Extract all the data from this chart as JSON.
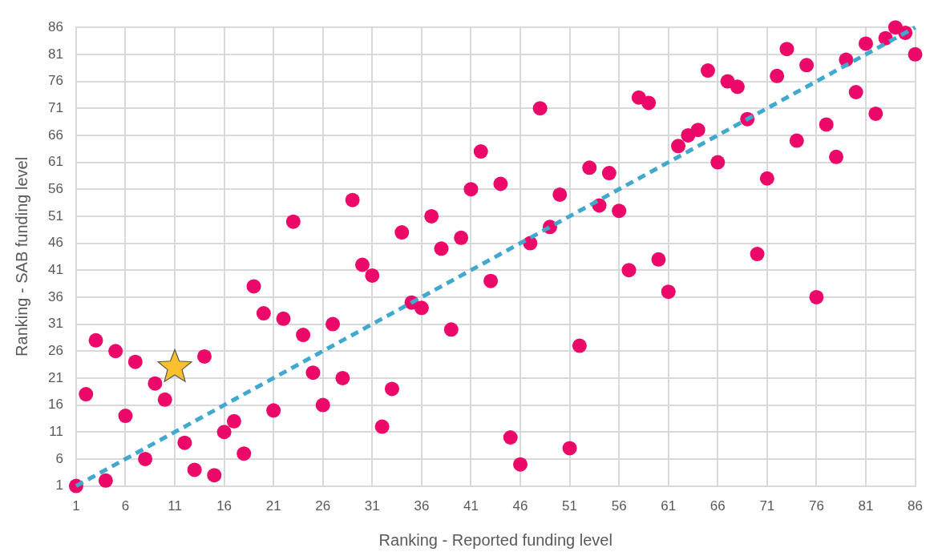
{
  "chart_data": {
    "type": "scatter",
    "xlabel": "Ranking - Reported funding level",
    "ylabel": "Ranking - SAB funding level",
    "xlim": [
      1,
      86
    ],
    "ylim": [
      1,
      86
    ],
    "xticks": [
      1,
      6,
      11,
      16,
      21,
      26,
      31,
      36,
      41,
      46,
      51,
      56,
      61,
      66,
      71,
      76,
      81,
      86
    ],
    "yticks": [
      1,
      6,
      11,
      16,
      21,
      26,
      31,
      36,
      41,
      46,
      51,
      56,
      61,
      66,
      71,
      76,
      81,
      86
    ],
    "grid": true,
    "legend": false,
    "series": [
      {
        "type": "line",
        "color": "#41a8cf",
        "line_style": "dashed",
        "marker": "none",
        "x": [
          1,
          86
        ],
        "values": [
          1,
          86
        ]
      },
      {
        "color": "#ec0868",
        "marker": "circle",
        "x": [
          1,
          2,
          3,
          4,
          5,
          6,
          7,
          8,
          9,
          10,
          12,
          13,
          14,
          15,
          16,
          17,
          18,
          19,
          20,
          21,
          22,
          23,
          24,
          25,
          26,
          27,
          28,
          29,
          30,
          31,
          32,
          33,
          34,
          35,
          36,
          37,
          38,
          39,
          40,
          41,
          42,
          43,
          44,
          45,
          46,
          47,
          48,
          49,
          50,
          51,
          52,
          53,
          54,
          55,
          56,
          57,
          58,
          59,
          60,
          61,
          62,
          63,
          64,
          65,
          66,
          67,
          68,
          69,
          70,
          71,
          72,
          73,
          74,
          75,
          76,
          77,
          78,
          79,
          80,
          81,
          82,
          83,
          84,
          85,
          86
        ],
        "values": [
          1,
          18,
          28,
          2,
          26,
          14,
          24,
          6,
          20,
          17,
          9,
          4,
          25,
          3,
          11,
          13,
          7,
          38,
          33,
          15,
          32,
          50,
          29,
          22,
          16,
          31,
          21,
          54,
          42,
          40,
          12,
          19,
          48,
          35,
          34,
          51,
          45,
          30,
          47,
          56,
          63,
          39,
          57,
          10,
          5,
          46,
          71,
          49,
          55,
          8,
          27,
          60,
          53,
          59,
          52,
          41,
          73,
          72,
          43,
          37,
          64,
          66,
          67,
          78,
          61,
          76,
          75,
          69,
          44,
          58,
          77,
          82,
          65,
          79,
          36,
          68,
          62,
          80,
          74,
          83,
          70,
          84,
          86,
          85,
          81
        ]
      },
      {
        "color": "#fbc02d",
        "marker": "star",
        "x": [
          11
        ],
        "values": [
          23
        ]
      }
    ]
  }
}
